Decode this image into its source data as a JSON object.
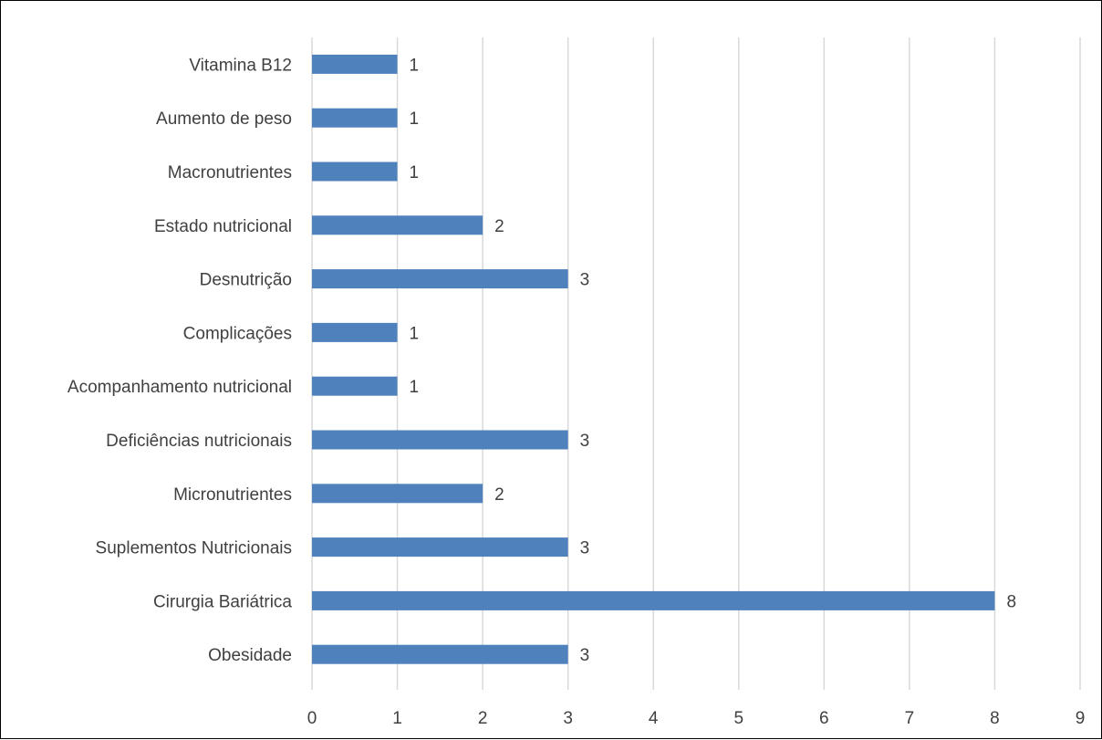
{
  "chart_data": {
    "type": "bar",
    "orientation": "horizontal",
    "title": "",
    "xlabel": "",
    "ylabel": "",
    "categories": [
      "Obesidade",
      "Cirurgia Bariátrica",
      "Suplementos Nutricionais",
      "Micronutrientes",
      "Deficiências nutricionais",
      "Acompanhamento nutricional",
      "Complicações",
      "Desnutrição",
      "Estado nutricional",
      "Macronutrientes",
      "Aumento de peso",
      "Vitamina B12"
    ],
    "values": [
      3,
      8,
      3,
      2,
      3,
      1,
      1,
      3,
      2,
      1,
      1,
      1
    ],
    "xlim": [
      0,
      9
    ],
    "xticks": [
      0,
      1,
      2,
      3,
      4,
      5,
      6,
      7,
      8,
      9
    ],
    "grid": true,
    "legend": "none",
    "data_labels": true,
    "colors": {
      "bar": "#4F81BD",
      "grid": "#D9D9D9",
      "text": "#404040",
      "border": "#000000"
    }
  }
}
